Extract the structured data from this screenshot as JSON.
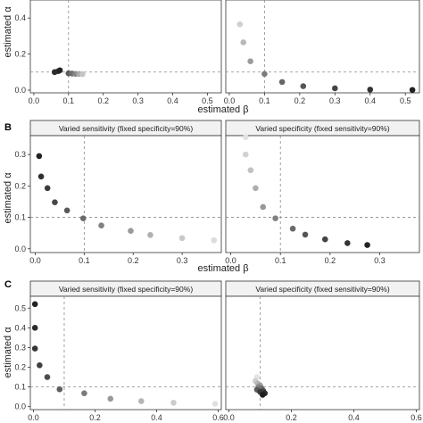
{
  "figure": {
    "row_labels": [
      "",
      "B",
      "C"
    ],
    "y_label": "estimated α",
    "x_label": "estimated β"
  },
  "chart_data": [
    {
      "type": "scatter",
      "row": 0,
      "col": 0,
      "strip": "",
      "xlim": [
        -0.01,
        0.54
      ],
      "ylim": [
        -0.015,
        0.5
      ],
      "xticks": [
        0.0,
        0.1,
        0.2,
        0.3,
        0.4,
        0.5
      ],
      "xticklabels": [
        "0.0",
        "0.1",
        "0.2",
        "0.3",
        "0.4",
        "0.5"
      ],
      "yticks": [
        0.0,
        0.2,
        0.4
      ],
      "yticklabels": [
        "0.0",
        "0.2",
        "0.4"
      ],
      "ref_x": 0.1,
      "ref_y": 0.1,
      "xlabel": "estimated β",
      "ylabel": "estimated α",
      "points": [
        {
          "x": 0.07,
          "y": 0.105,
          "gray": "#3a3a3a"
        },
        {
          "x": 0.06,
          "y": 0.1,
          "gray": "#2c2c2c"
        },
        {
          "x": 0.075,
          "y": 0.11,
          "gray": "#222222"
        },
        {
          "x": 0.1,
          "y": 0.093,
          "gray": "#5a5a5a"
        },
        {
          "x": 0.11,
          "y": 0.092,
          "gray": "#6e6e6e"
        },
        {
          "x": 0.12,
          "y": 0.09,
          "gray": "#888888"
        },
        {
          "x": 0.13,
          "y": 0.09,
          "gray": "#a8a8a8"
        },
        {
          "x": 0.14,
          "y": 0.089,
          "gray": "#c4c4c4"
        }
      ]
    },
    {
      "type": "scatter",
      "row": 0,
      "col": 1,
      "strip": "",
      "xlim": [
        -0.01,
        0.54
      ],
      "ylim": [
        -0.015,
        0.5
      ],
      "xticks": [
        0.0,
        0.1,
        0.2,
        0.3,
        0.4,
        0.5
      ],
      "xticklabels": [
        "0.0",
        "0.1",
        "0.2",
        "0.3",
        "0.4",
        "0.5"
      ],
      "yticks": [],
      "yticklabels": [],
      "ref_x": 0.1,
      "ref_y": 0.1,
      "points": [
        {
          "x": 0.03,
          "y": 0.365,
          "gray": "#d0d0d0"
        },
        {
          "x": 0.04,
          "y": 0.265,
          "gray": "#b8b8b8"
        },
        {
          "x": 0.06,
          "y": 0.16,
          "gray": "#9c9c9c"
        },
        {
          "x": 0.1,
          "y": 0.09,
          "gray": "#7c7c7c"
        },
        {
          "x": 0.15,
          "y": 0.045,
          "gray": "#666666"
        },
        {
          "x": 0.21,
          "y": 0.022,
          "gray": "#555555"
        },
        {
          "x": 0.3,
          "y": 0.01,
          "gray": "#444444"
        },
        {
          "x": 0.4,
          "y": 0.003,
          "gray": "#333333"
        },
        {
          "x": 0.52,
          "y": 0.001,
          "gray": "#222222"
        }
      ]
    },
    {
      "type": "scatter",
      "row": 1,
      "col": 0,
      "strip": "Varied sensitivity (fixed specificity=90%)",
      "xlim": [
        -0.01,
        0.38
      ],
      "ylim": [
        -0.012,
        0.36
      ],
      "xticks": [
        0.0,
        0.1,
        0.2,
        0.3
      ],
      "xticklabels": [
        "0.0",
        "0.1",
        "0.2",
        "0.3"
      ],
      "yticks": [
        0.0,
        0.1,
        0.2,
        0.3
      ],
      "yticklabels": [
        "0.0",
        "0.1",
        "0.2",
        "0.3"
      ],
      "ref_x": 0.1,
      "ref_y": 0.1,
      "xlabel": "estimated β",
      "ylabel": "estimated α",
      "points": [
        {
          "x": 0.008,
          "y": 0.295,
          "gray": "#222222"
        },
        {
          "x": 0.012,
          "y": 0.23,
          "gray": "#2e2e2e"
        },
        {
          "x": 0.025,
          "y": 0.193,
          "gray": "#3a3a3a"
        },
        {
          "x": 0.04,
          "y": 0.148,
          "gray": "#474747"
        },
        {
          "x": 0.065,
          "y": 0.122,
          "gray": "#585858"
        },
        {
          "x": 0.098,
          "y": 0.097,
          "gray": "#6a6a6a"
        },
        {
          "x": 0.135,
          "y": 0.074,
          "gray": "#808080"
        },
        {
          "x": 0.195,
          "y": 0.057,
          "gray": "#9a9a9a"
        },
        {
          "x": 0.235,
          "y": 0.044,
          "gray": "#b0b0b0"
        },
        {
          "x": 0.3,
          "y": 0.034,
          "gray": "#c8c8c8"
        },
        {
          "x": 0.365,
          "y": 0.027,
          "gray": "#dcdcdc"
        }
      ]
    },
    {
      "type": "scatter",
      "row": 1,
      "col": 1,
      "strip": "Varied specificity (fixed sensitivity=90%)",
      "xlim": [
        -0.01,
        0.38
      ],
      "ylim": [
        -0.012,
        0.36
      ],
      "xticks": [
        0.0,
        0.1,
        0.2,
        0.3
      ],
      "xticklabels": [
        "0.0",
        "0.1",
        "0.2",
        "0.3"
      ],
      "yticks": [],
      "yticklabels": [],
      "ref_x": 0.1,
      "ref_y": 0.1,
      "points": [
        {
          "x": 0.03,
          "y": 0.355,
          "gray": "#e2e2e2"
        },
        {
          "x": 0.03,
          "y": 0.3,
          "gray": "#d2d2d2"
        },
        {
          "x": 0.04,
          "y": 0.25,
          "gray": "#c2c2c2"
        },
        {
          "x": 0.05,
          "y": 0.193,
          "gray": "#aeaeae"
        },
        {
          "x": 0.065,
          "y": 0.133,
          "gray": "#989898"
        },
        {
          "x": 0.09,
          "y": 0.097,
          "gray": "#818181"
        },
        {
          "x": 0.125,
          "y": 0.064,
          "gray": "#6a6a6a"
        },
        {
          "x": 0.15,
          "y": 0.045,
          "gray": "#555555"
        },
        {
          "x": 0.19,
          "y": 0.03,
          "gray": "#434343"
        },
        {
          "x": 0.235,
          "y": 0.018,
          "gray": "#333333"
        },
        {
          "x": 0.275,
          "y": 0.012,
          "gray": "#232323"
        }
      ]
    },
    {
      "type": "scatter",
      "row": 2,
      "col": 0,
      "strip": "Varied sensitivity (fixed specificity=90%)",
      "xlim": [
        -0.01,
        0.61
      ],
      "ylim": [
        -0.015,
        0.56
      ],
      "xticks": [
        0.0,
        0.2,
        0.4,
        0.6
      ],
      "xticklabels": [
        "0.0",
        "0.2",
        "0.4",
        "0.6"
      ],
      "yticks": [
        0.0,
        0.1,
        0.2,
        0.3,
        0.4,
        0.5
      ],
      "yticklabels": [
        "0.0",
        "0.1",
        "0.2",
        "0.3",
        "0.4",
        "0.5"
      ],
      "ref_x": 0.1,
      "ref_y": 0.1,
      "ylabel": "estimated α",
      "points": [
        {
          "x": 0.005,
          "y": 0.52,
          "gray": "#222222"
        },
        {
          "x": 0.005,
          "y": 0.4,
          "gray": "#2c2c2c"
        },
        {
          "x": 0.005,
          "y": 0.295,
          "gray": "#363636"
        },
        {
          "x": 0.02,
          "y": 0.21,
          "gray": "#404040"
        },
        {
          "x": 0.045,
          "y": 0.15,
          "gray": "#4d4d4d"
        },
        {
          "x": 0.085,
          "y": 0.088,
          "gray": "#5e5e5e"
        },
        {
          "x": 0.165,
          "y": 0.068,
          "gray": "#7a7a7a"
        },
        {
          "x": 0.25,
          "y": 0.04,
          "gray": "#999999"
        },
        {
          "x": 0.35,
          "y": 0.028,
          "gray": "#b5b5b5"
        },
        {
          "x": 0.455,
          "y": 0.02,
          "gray": "#cccccc"
        },
        {
          "x": 0.59,
          "y": 0.015,
          "gray": "#e0e0e0"
        }
      ]
    },
    {
      "type": "scatter",
      "row": 2,
      "col": 1,
      "strip": "Varied specificity (fixed sensitivity=90%)",
      "xlim": [
        -0.01,
        0.61
      ],
      "ylim": [
        -0.015,
        0.56
      ],
      "xticks": [
        0.0,
        0.2,
        0.4,
        0.6
      ],
      "xticklabels": [
        "0.0",
        "0.2",
        "0.4",
        "0.6"
      ],
      "yticks": [],
      "yticklabels": [],
      "ref_x": 0.1,
      "ref_y": 0.1,
      "points": [
        {
          "x": 0.09,
          "y": 0.15,
          "gray": "#e4e4e4"
        },
        {
          "x": 0.085,
          "y": 0.13,
          "gray": "#cfcfcf"
        },
        {
          "x": 0.092,
          "y": 0.118,
          "gray": "#b8b8b8"
        },
        {
          "x": 0.1,
          "y": 0.108,
          "gray": "#a0a0a0"
        },
        {
          "x": 0.095,
          "y": 0.1,
          "gray": "#888888"
        },
        {
          "x": 0.105,
          "y": 0.093,
          "gray": "#707070"
        },
        {
          "x": 0.09,
          "y": 0.086,
          "gray": "#5c5c5c"
        },
        {
          "x": 0.11,
          "y": 0.08,
          "gray": "#4a4a4a"
        },
        {
          "x": 0.1,
          "y": 0.075,
          "gray": "#3a3a3a"
        },
        {
          "x": 0.115,
          "y": 0.068,
          "gray": "#2c2c2c"
        },
        {
          "x": 0.108,
          "y": 0.06,
          "gray": "#1e1e1e"
        }
      ]
    }
  ]
}
